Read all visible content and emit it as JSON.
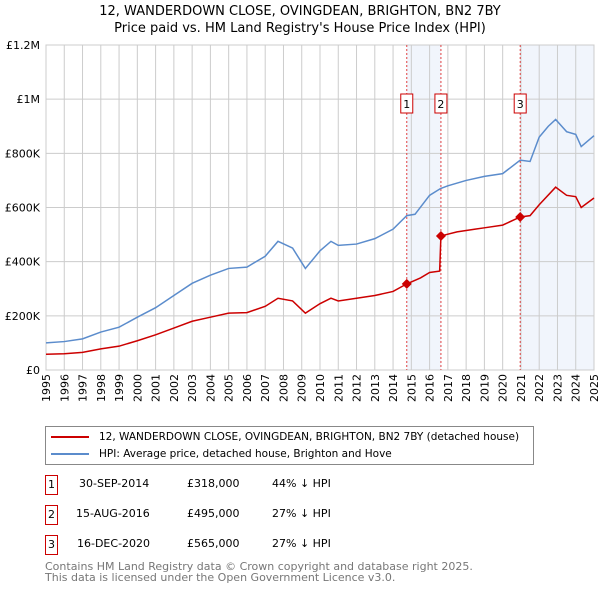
{
  "chart_data": {
    "type": "line",
    "title": "12, WANDERDOWN CLOSE, OVINGDEAN, BRIGHTON, BN2 7BY",
    "subtitle": "Price paid vs. HM Land Registry's House Price Index (HPI)",
    "xlim": [
      1995,
      2025
    ],
    "ylim": [
      0,
      1200000
    ],
    "yticks": [
      {
        "v": 0,
        "label": "£0"
      },
      {
        "v": 200000,
        "label": "£200K"
      },
      {
        "v": 400000,
        "label": "£400K"
      },
      {
        "v": 600000,
        "label": "£600K"
      },
      {
        "v": 800000,
        "label": "£800K"
      },
      {
        "v": 1000000,
        "label": "£1M"
      },
      {
        "v": 1200000,
        "label": "£1.2M"
      }
    ],
    "xticks": [
      "1995",
      "1996",
      "1997",
      "1998",
      "1999",
      "2000",
      "2001",
      "2002",
      "2003",
      "2004",
      "2005",
      "2006",
      "2007",
      "2008",
      "2009",
      "2010",
      "2011",
      "2012",
      "2013",
      "2014",
      "2015",
      "2016",
      "2017",
      "2018",
      "2019",
      "2020",
      "2021",
      "2022",
      "2023",
      "2024",
      "2025"
    ],
    "grid": true,
    "shaded_ranges": [
      [
        2014.75,
        2016.62
      ],
      [
        2020.96,
        2025
      ]
    ],
    "series": [
      {
        "name": "12, WANDERDOWN CLOSE, OVINGDEAN, BRIGHTON, BN2 7BY (detached house)",
        "color": "#cc0000",
        "x": [
          1995,
          1996,
          1997,
          1998,
          1999,
          2000,
          2001,
          2002,
          2003,
          2004,
          2005,
          2006,
          2007,
          2007.7,
          2008.5,
          2009.2,
          2010,
          2010.6,
          2011,
          2012,
          2013,
          2014,
          2014.75,
          2015.5,
          2016,
          2016.55,
          2016.62,
          2017.5,
          2018.5,
          2019,
          2020,
          2020.96,
          2021.5,
          2022,
          2022.9,
          2023.5,
          2024,
          2024.3,
          2025
        ],
        "y": [
          58000,
          60000,
          65000,
          78000,
          88000,
          108000,
          130000,
          155000,
          180000,
          195000,
          210000,
          212000,
          235000,
          265000,
          255000,
          210000,
          245000,
          265000,
          255000,
          265000,
          275000,
          290000,
          318000,
          340000,
          360000,
          365000,
          495000,
          510000,
          520000,
          525000,
          535000,
          565000,
          570000,
          610000,
          675000,
          645000,
          640000,
          600000,
          635000
        ]
      },
      {
        "name": "HPI: Average price, detached house, Brighton and Hove",
        "color": "#5b8ccc",
        "x": [
          1995,
          1996,
          1997,
          1998,
          1999,
          2000,
          2001,
          2002,
          2003,
          2004,
          2005,
          2006,
          2007,
          2007.7,
          2008.5,
          2009.2,
          2010,
          2010.6,
          2011,
          2012,
          2013,
          2014,
          2014.75,
          2015.2,
          2016,
          2016.6,
          2017,
          2018,
          2019,
          2020,
          2020.96,
          2021.5,
          2022,
          2022.5,
          2022.9,
          2023.5,
          2024,
          2024.3,
          2025
        ],
        "y": [
          100000,
          105000,
          115000,
          140000,
          158000,
          195000,
          230000,
          275000,
          320000,
          350000,
          375000,
          380000,
          420000,
          475000,
          450000,
          375000,
          440000,
          475000,
          460000,
          465000,
          485000,
          520000,
          570000,
          575000,
          645000,
          670000,
          680000,
          700000,
          715000,
          725000,
          775000,
          770000,
          860000,
          900000,
          925000,
          880000,
          870000,
          825000,
          865000
        ]
      }
    ],
    "sales": [
      {
        "n": "1",
        "date": "30-SEP-2014",
        "price": "£318,000",
        "hpi": "44% ↓ HPI",
        "x": 2014.75,
        "y": 318000
      },
      {
        "n": "2",
        "date": "15-AUG-2016",
        "price": "£495,000",
        "hpi": "27% ↓ HPI",
        "x": 2016.62,
        "y": 495000
      },
      {
        "n": "3",
        "date": "16-DEC-2020",
        "price": "£565,000",
        "hpi": "27% ↓ HPI",
        "x": 2020.96,
        "y": 565000
      }
    ]
  },
  "footer": {
    "line1": "Contains HM Land Registry data © Crown copyright and database right 2025.",
    "line2": "This data is licensed under the Open Government Licence v3.0."
  }
}
